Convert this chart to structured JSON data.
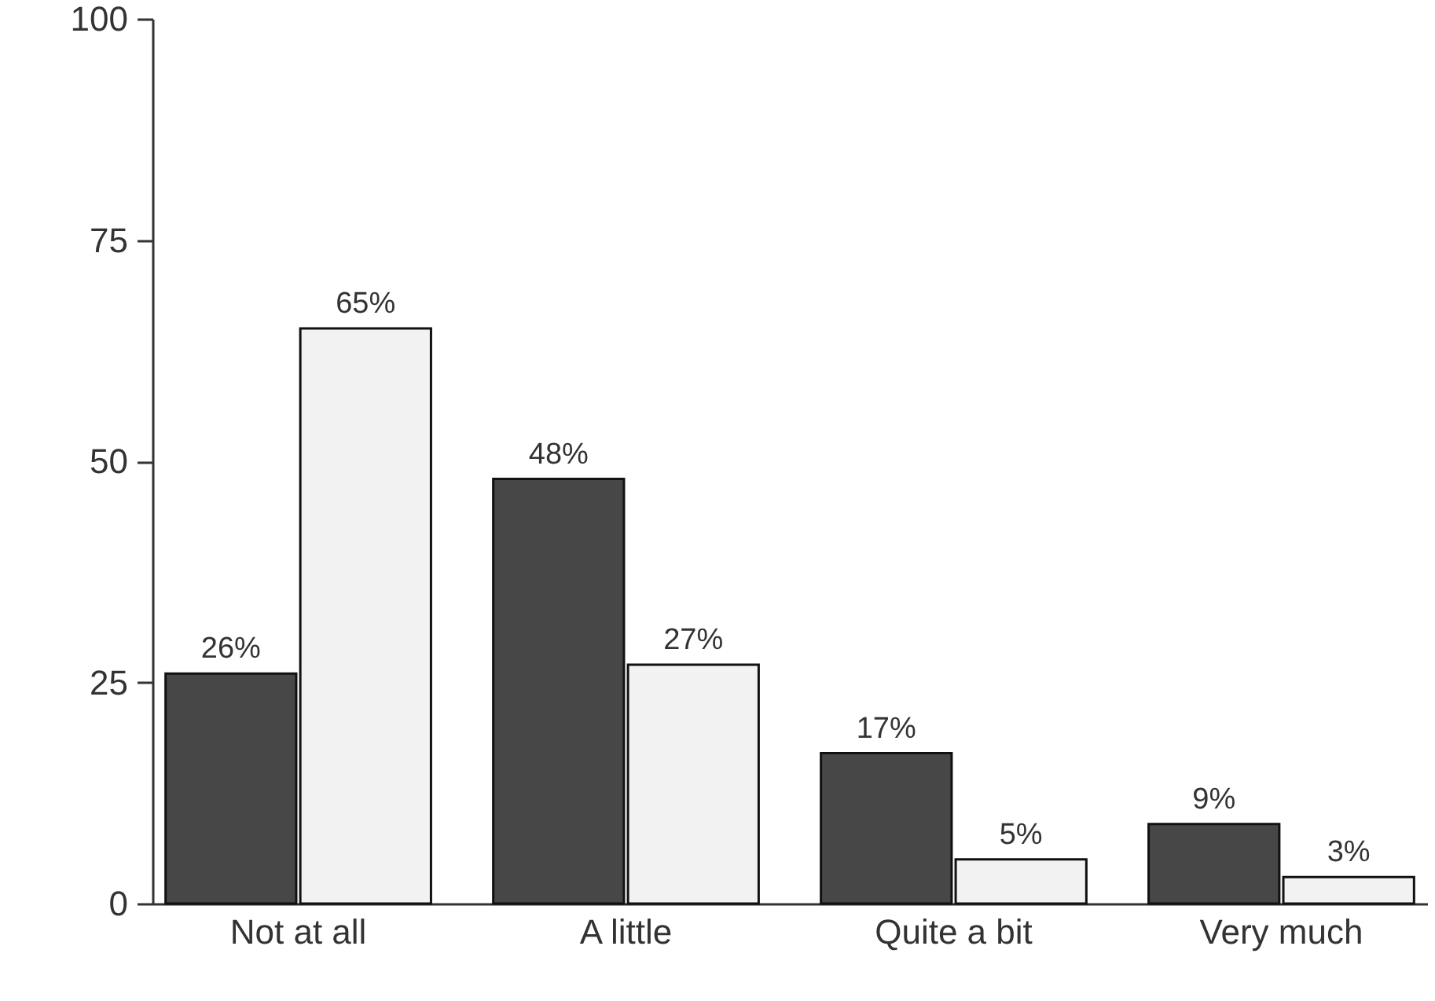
{
  "chart_data": {
    "type": "bar",
    "categories": [
      "Not at all",
      "A little",
      "Quite a bit",
      "Very much"
    ],
    "series": [
      {
        "color": "#474747",
        "values": [
          26,
          48,
          17,
          9
        ],
        "value_labels": [
          "26%",
          "48%",
          "17%",
          "9%"
        ]
      },
      {
        "color": "#f2f2f2",
        "values": [
          65,
          27,
          5,
          3
        ],
        "value_labels": [
          "65%",
          "27%",
          "5%",
          "3%"
        ]
      }
    ],
    "ylim": [
      0,
      100
    ],
    "yticks": [
      0,
      25,
      50,
      75,
      100
    ],
    "grid": false
  }
}
